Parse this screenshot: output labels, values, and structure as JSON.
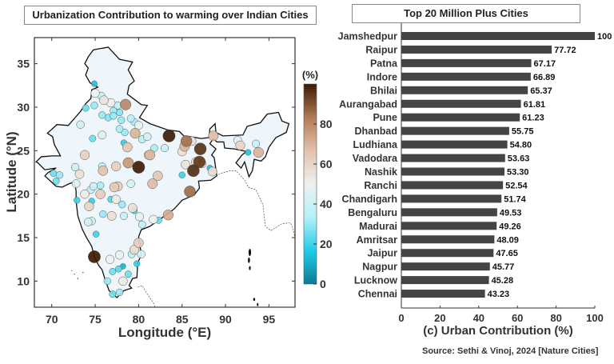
{
  "chart_data": [
    {
      "type": "scatter",
      "title": "Urbanization Contribution to warming over Indian Cities",
      "xlabel": "Longitude (°E)",
      "ylabel": "Latitude (°N)",
      "xlim": [
        68,
        98
      ],
      "ylim": [
        7,
        38
      ],
      "xticks": [
        "70",
        "75",
        "80",
        "85",
        "90",
        "95"
      ],
      "yticks": [
        "10",
        "15",
        "20",
        "25",
        "30",
        "35"
      ],
      "colorbar": {
        "label": "(%)",
        "range": [
          0,
          100
        ],
        "ticks": [
          "0",
          "20",
          "40",
          "60",
          "80"
        ],
        "colors": [
          "#0b7a95",
          "#20cde8",
          "#b5f1f7",
          "#eef1ef",
          "#e3c2ad",
          "#b07a55",
          "#3b1b04"
        ]
      },
      "points": [
        [
          83.5,
          26.7,
          100
        ],
        [
          80.0,
          23.1,
          100
        ],
        [
          74.9,
          12.8,
          100
        ],
        [
          87.1,
          25.2,
          96
        ],
        [
          87.0,
          23.7,
          95
        ],
        [
          86.3,
          22.7,
          97
        ],
        [
          85.9,
          20.3,
          86
        ],
        [
          85.5,
          26.1,
          85
        ],
        [
          78.5,
          30.3,
          80
        ],
        [
          78.8,
          23.6,
          76
        ],
        [
          79.6,
          27.0,
          70
        ],
        [
          81.3,
          24.5,
          70
        ],
        [
          81.6,
          21.2,
          68
        ],
        [
          82.2,
          22.1,
          65
        ],
        [
          83.4,
          17.6,
          72
        ],
        [
          78.7,
          25.4,
          65
        ],
        [
          73.8,
          24.5,
          62
        ],
        [
          75.9,
          22.7,
          66
        ],
        [
          77.4,
          23.2,
          62
        ],
        [
          77.2,
          20.8,
          64
        ],
        [
          77.6,
          20.9,
          62
        ],
        [
          75.6,
          20.0,
          63
        ],
        [
          74.3,
          18.6,
          60
        ],
        [
          79.3,
          18.4,
          56
        ],
        [
          73.2,
          22.3,
          56
        ],
        [
          73.8,
          20.0,
          53
        ],
        [
          77.4,
          19.4,
          53
        ],
        [
          76.9,
          17.5,
          56
        ],
        [
          80.0,
          14.4,
          63
        ],
        [
          79.5,
          13.6,
          58
        ],
        [
          85.3,
          25.5,
          70
        ],
        [
          86.1,
          26.1,
          56
        ],
        [
          85.0,
          24.9,
          57
        ],
        [
          85.4,
          23.4,
          55
        ],
        [
          86.6,
          23.7,
          60
        ],
        [
          87.3,
          23.5,
          50
        ],
        [
          88.5,
          22.6,
          58
        ],
        [
          88.6,
          26.7,
          68
        ],
        [
          91.7,
          25.6,
          60
        ],
        [
          93.8,
          24.8,
          70
        ],
        [
          76.0,
          30.8,
          55
        ],
        [
          76.8,
          30.5,
          52
        ],
        [
          75.7,
          31.3,
          38
        ],
        [
          75.0,
          31.6,
          50
        ],
        [
          73.9,
          29.9,
          25
        ],
        [
          74.9,
          30.2,
          30
        ],
        [
          77.1,
          29.6,
          30
        ],
        [
          77.6,
          30.2,
          35
        ],
        [
          77.8,
          29.4,
          28
        ],
        [
          75.8,
          29.1,
          30
        ],
        [
          76.5,
          28.8,
          28
        ],
        [
          77.1,
          29.0,
          30
        ],
        [
          78.0,
          28.5,
          30
        ],
        [
          77.8,
          27.5,
          32
        ],
        [
          78.4,
          27.1,
          30
        ],
        [
          79.1,
          28.7,
          35
        ],
        [
          79.5,
          28.3,
          32
        ],
        [
          80.0,
          27.9,
          48
        ],
        [
          73.3,
          28.0,
          40
        ],
        [
          75.8,
          26.8,
          45
        ],
        [
          74.7,
          26.4,
          25
        ],
        [
          80.4,
          26.3,
          35
        ],
        [
          81.0,
          26.6,
          42
        ],
        [
          78.3,
          25.9,
          18
        ],
        [
          81.8,
          25.3,
          32
        ],
        [
          83.0,
          25.3,
          38
        ],
        [
          81.1,
          24.5,
          48
        ],
        [
          75.8,
          23.2,
          35
        ],
        [
          72.7,
          23.1,
          40
        ],
        [
          70.9,
          22.2,
          30
        ],
        [
          70.2,
          22.4,
          25
        ],
        [
          70.5,
          21.5,
          25
        ],
        [
          72.8,
          21.2,
          45
        ],
        [
          75.6,
          21.0,
          32
        ],
        [
          74.8,
          20.9,
          40
        ],
        [
          74.5,
          20.5,
          38
        ],
        [
          79.1,
          21.2,
          42
        ],
        [
          85.0,
          22.2,
          20
        ],
        [
          88.2,
          23.0,
          15
        ],
        [
          72.9,
          19.3,
          20
        ],
        [
          74.6,
          19.2,
          18
        ],
        [
          76.8,
          19.4,
          22
        ],
        [
          78.1,
          18.8,
          30
        ],
        [
          79.5,
          18.1,
          20
        ],
        [
          75.9,
          17.7,
          30
        ],
        [
          78.3,
          17.5,
          38
        ],
        [
          80.1,
          17.4,
          48
        ],
        [
          81.7,
          17.1,
          50
        ],
        [
          82.3,
          17.0,
          25
        ],
        [
          80.4,
          16.5,
          35
        ],
        [
          74.2,
          16.8,
          42
        ],
        [
          74.6,
          16.9,
          40
        ],
        [
          75.1,
          15.4,
          20
        ],
        [
          77.8,
          13.0,
          50
        ],
        [
          76.7,
          12.5,
          50
        ],
        [
          79.2,
          13.1,
          35
        ],
        [
          80.3,
          13.1,
          42
        ],
        [
          79.8,
          12.0,
          18
        ],
        [
          77.0,
          11.1,
          25
        ],
        [
          77.7,
          11.4,
          22
        ],
        [
          78.2,
          11.7,
          12
        ],
        [
          78.8,
          10.8,
          25
        ],
        [
          76.4,
          10.0,
          30
        ],
        [
          78.2,
          10.0,
          52
        ],
        [
          77.8,
          8.7,
          30
        ],
        [
          77.0,
          8.5,
          25
        ],
        [
          91.4,
          26.2,
          45
        ],
        [
          93.5,
          25.8,
          38
        ],
        [
          92.6,
          24.8,
          15
        ],
        [
          74.9,
          32.7,
          15
        ]
      ]
    },
    {
      "type": "bar",
      "orientation": "horizontal",
      "title": "Top 20 Million Plus Cities",
      "xlabel": "(c) Urban Contribution (%)",
      "xlim": [
        0,
        100
      ],
      "xticks": [
        "0",
        "20",
        "40",
        "60",
        "80",
        "100"
      ],
      "bar_color": "#444444",
      "categories": [
        "Jamshedpur",
        "Raipur",
        "Patna",
        "Indore",
        "Bhilai",
        "Aurangabad",
        "Pune",
        "Dhanbad",
        "Ludhiana",
        "Vadodara",
        "Nashik",
        "Ranchi",
        "Chandigarh",
        "Bengaluru",
        "Madurai",
        "Amritsar",
        "Jaipur",
        "Nagpur",
        "Lucknow",
        "Chennai"
      ],
      "values": [
        100,
        77.72,
        67.17,
        66.89,
        65.37,
        61.81,
        61.23,
        55.75,
        54.8,
        53.63,
        53.3,
        52.54,
        51.74,
        49.53,
        49.26,
        48.09,
        47.65,
        45.77,
        45.28,
        43.23
      ],
      "labels": [
        "100",
        "77.72",
        "67.17",
        "66.89",
        "65.37",
        "61.81",
        "61.23",
        "55.75",
        "54.80",
        "53.63",
        "53.30",
        "52.54",
        "51.74",
        "49.53",
        "49.26",
        "48.09",
        "47.65",
        "45.77",
        "45.28",
        "43.23"
      ]
    }
  ],
  "source": "Source: Sethi & Vinoj, 2024 [Nature Cities]"
}
